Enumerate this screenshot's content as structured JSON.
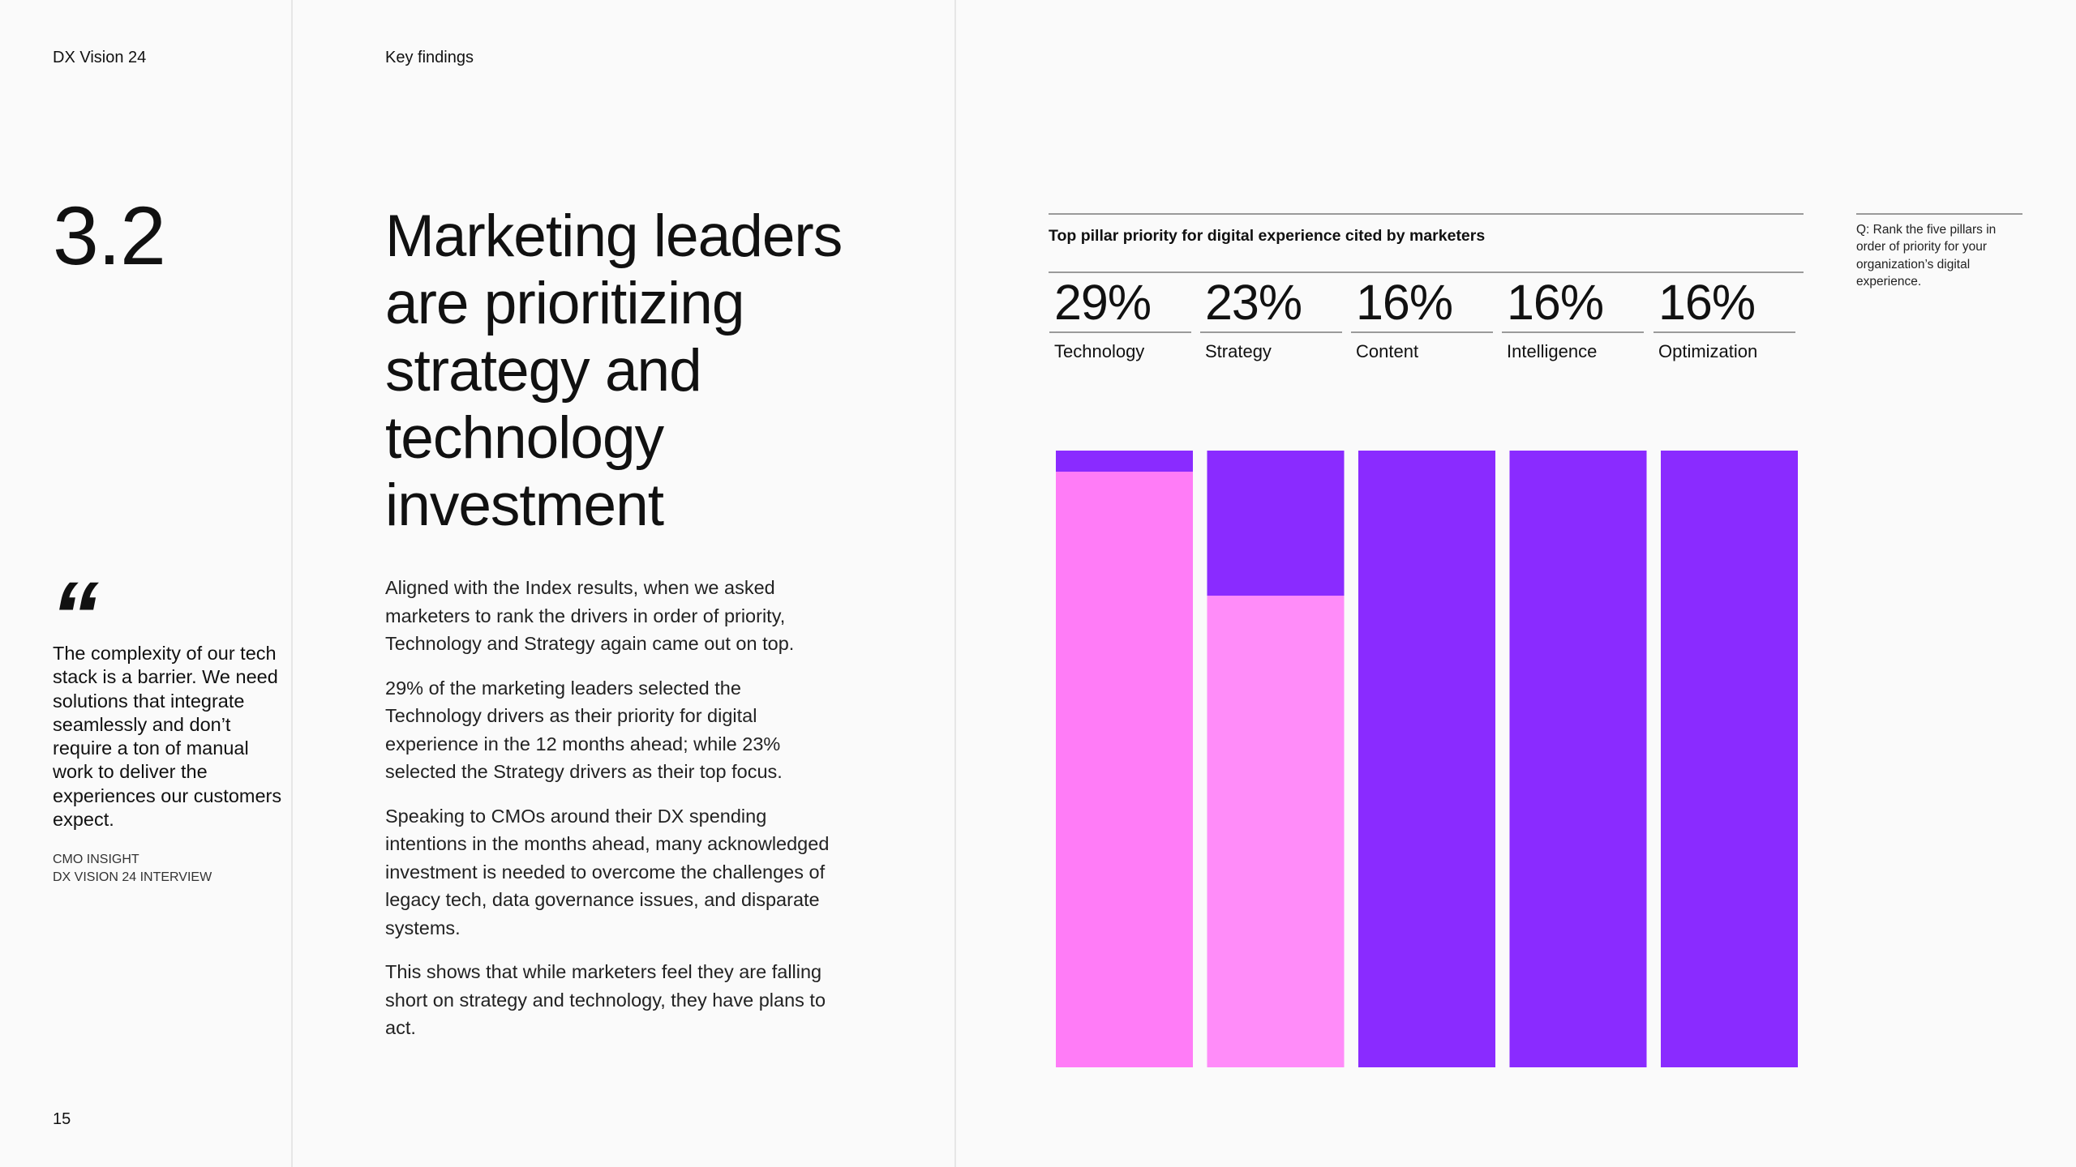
{
  "header": {
    "brand": "DX Vision 24",
    "section_label": "Key findings"
  },
  "section_number": "3.2",
  "headline": "Marketing leaders are prioritizing strategy and technology investment",
  "quote": {
    "mark": "“",
    "text": "The complexity of our tech stack is a barrier. We need solutions that integrate seamlessly and don’t require a ton of manual work to deliver the experiences our customers expect.",
    "source_line1": "CMO insight",
    "source_line2": "DX Vision 24 interview"
  },
  "body": {
    "p1": "Aligned with the Index results, when we asked marketers to rank the drivers in order of priority, Technology and Strategy again came out on top.",
    "p2": "29% of the marketing leaders selected the Technology drivers as their priority for digital experience in the 12 months ahead; while 23% selected the Strategy drivers as their top focus.",
    "p3": "Speaking to CMOs around their DX spending intentions in the months ahead, many acknowledged investment is needed to overcome the challenges of legacy tech, data governance issues, and disparate systems.",
    "p4": "This shows that while marketers feel they are falling short on strategy and technology, they have plans to act."
  },
  "page_number": "15",
  "question_note": "Q: Rank the five pillars in order of priority for your organization’s digital experience.",
  "colors": {
    "purple": "#8a2bff",
    "pink": "#ff7cf7",
    "light_pink": "#ff8cf9"
  },
  "chart_data": {
    "type": "bar",
    "title": "Top pillar priority for digital experience cited by marketers",
    "categories": [
      "Technology",
      "Strategy",
      "Content",
      "Intelligence",
      "Optimization"
    ],
    "values": [
      29,
      23,
      16,
      16,
      16
    ],
    "value_labels": [
      "29%",
      "23%",
      "16%",
      "16%",
      "16%"
    ],
    "highlight_fraction_estimated": [
      0.966,
      0.765,
      0,
      0,
      0
    ],
    "ylim": [
      0,
      100
    ],
    "xlabel": "",
    "ylabel": ""
  }
}
